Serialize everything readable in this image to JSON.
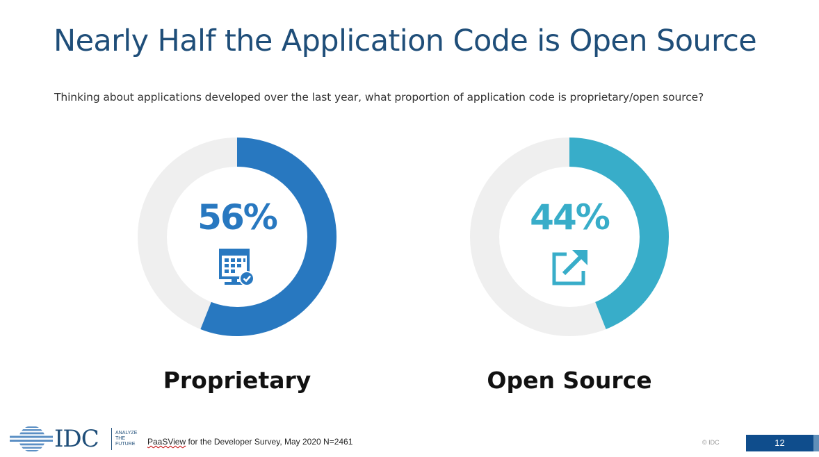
{
  "slide": {
    "title": "Nearly Half the Application Code is Open Source",
    "subtitle": "Thinking about applications developed over the last year, what proportion of application code is proprietary/open source?"
  },
  "chart_data": [
    {
      "type": "pie",
      "variant": "donut",
      "label": "Proprietary",
      "value": 56,
      "value_label": "56%",
      "total": 100,
      "color": "#2878c0",
      "track_color": "#efefef",
      "icon": "computer-check-icon"
    },
    {
      "type": "pie",
      "variant": "donut",
      "label": "Open Source",
      "value": 44,
      "value_label": "44%",
      "total": 100,
      "color": "#38adc9",
      "track_color": "#efefef",
      "icon": "external-link-icon"
    }
  ],
  "footer": {
    "logo_text": "IDC",
    "tagline": [
      "ANALYZE",
      "THE",
      "FUTURE"
    ],
    "source_prefix": "PaaSView",
    "source_rest": " for the Developer Survey, May 2020 N=2461",
    "copyright": "© IDC",
    "page_number": "12"
  },
  "colors": {
    "title": "#1f4e79",
    "brand_blue": "#0f4d8c"
  }
}
